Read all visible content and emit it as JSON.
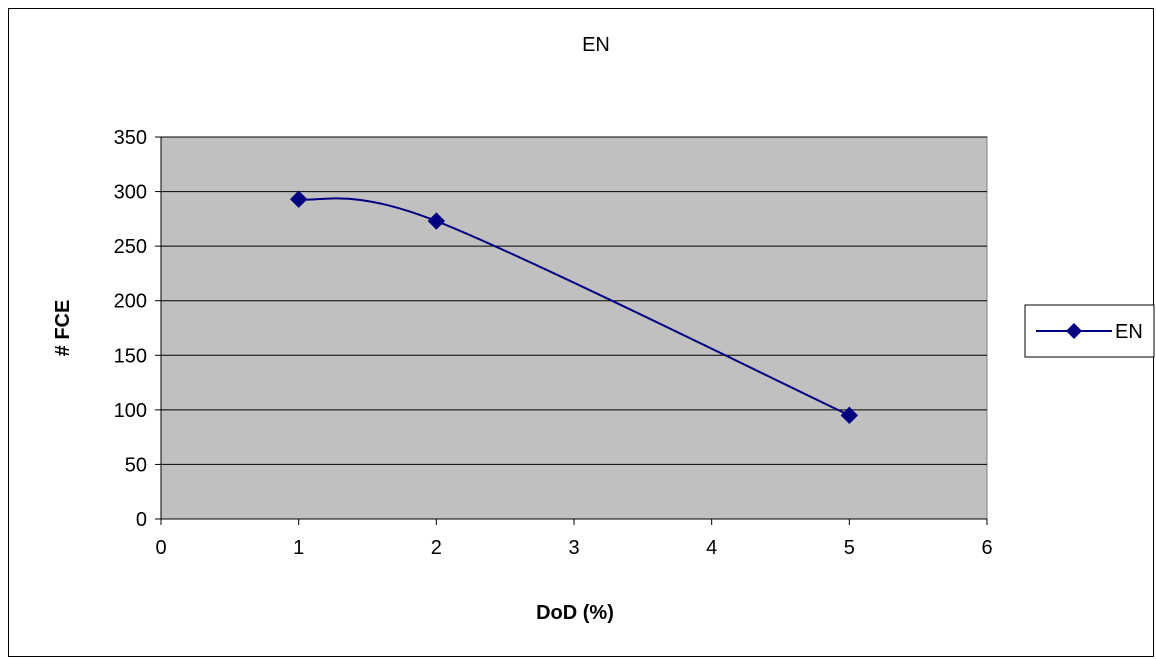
{
  "chart_data": {
    "type": "line",
    "title": "EN",
    "xlabel": "DoD (%)",
    "ylabel": "# FCE",
    "xlim": [
      0,
      6
    ],
    "ylim": [
      0,
      350
    ],
    "xticks": [
      0,
      1,
      2,
      3,
      4,
      5,
      6
    ],
    "yticks": [
      0,
      50,
      100,
      150,
      200,
      250,
      300,
      350
    ],
    "grid": {
      "horizontal": true,
      "vertical": false
    },
    "plot_background": "#c0c0c0",
    "smoothed": true,
    "legend": {
      "position": "right"
    },
    "series": [
      {
        "name": "EN",
        "color": "#000080",
        "marker": "diamond",
        "x": [
          1,
          2,
          5
        ],
        "y": [
          293,
          273,
          95
        ]
      }
    ]
  }
}
